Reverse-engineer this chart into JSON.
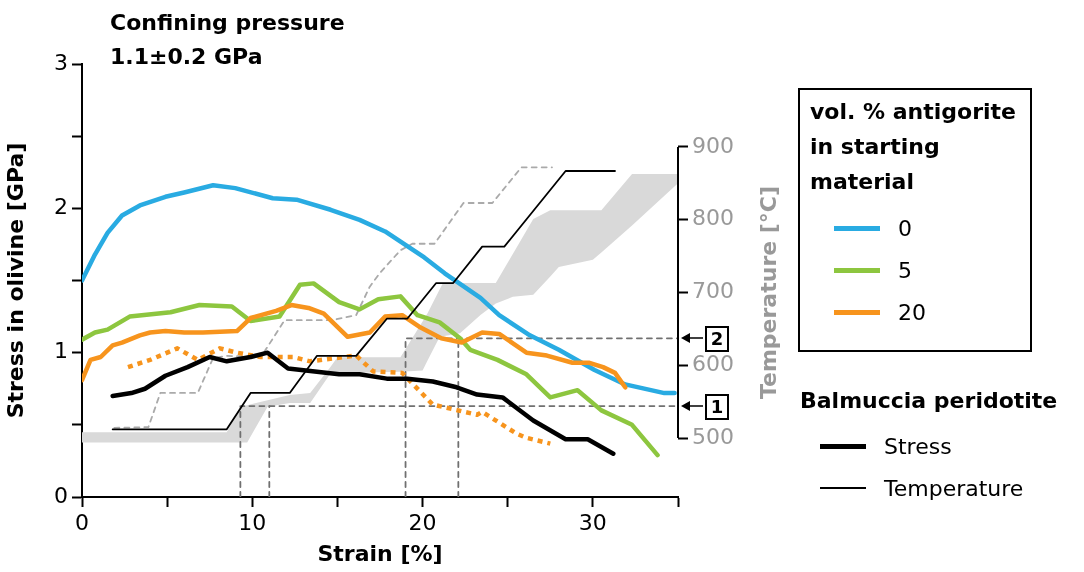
{
  "chart_data": {
    "type": "line",
    "title": "Confining pressure",
    "subtitle": "1.1±0.2 GPa",
    "xlabel": "Strain [%]",
    "ylabel": "Stress in olivine [GPa]",
    "y2label": "Temperature [°C]",
    "legend_title": "vol. % antigorite in starting material",
    "annotations": [
      "Balmuccia peridotite",
      {
        "text": "1",
        "x": 35,
        "y": 0.63
      },
      {
        "text": "2",
        "x": 35,
        "y": 1.1
      }
    ],
    "xlim": [
      0,
      35
    ],
    "xticks": [
      0,
      {
        "value": 5,
        "label": null
      },
      10,
      {
        "value": 15,
        "label": null
      },
      20,
      {
        "value": 25,
        "label": null
      },
      30,
      {
        "value": 35,
        "label": null
      }
    ],
    "ylim": [
      0,
      3
    ],
    "yticks": [
      0,
      {
        "value": 0.5,
        "label": null
      },
      1,
      {
        "value": 1.5,
        "label": null
      },
      2,
      {
        "value": 2.5,
        "label": null
      },
      3
    ],
    "y2lim": [
      419,
      1014
    ],
    "y2ticks": [
      500,
      600,
      700,
      800,
      900
    ],
    "grid": false,
    "legend": "right",
    "marker": "none",
    "series": [
      {
        "type": "area",
        "axis": "y2",
        "color": "#d9d9d9",
        "x": [
          0,
          8.5,
          9.3,
          9.7,
          10.9,
          12.2,
          13.4,
          14.6,
          15,
          18.7,
          20,
          20.3,
          21,
          21.2,
          22.2,
          23.4,
          24.3,
          25.3,
          26.5,
          27.5,
          28,
          30,
          30.5,
          32.3,
          35
        ],
        "values": [
          null,
          null,
          null,
          null,
          null,
          null,
          null,
          null,
          null,
          null,
          null,
          null,
          null,
          null,
          null,
          null,
          null,
          null,
          null,
          null,
          null,
          null,
          null,
          null,
          null
        ],
        "lower": [
          494,
          494,
          494,
          494,
          543,
          548,
          548,
          589,
          589,
          591,
          593,
          607,
          639,
          640,
          644,
          669,
          685,
          694,
          697,
          722,
          735,
          745,
          755,
          792,
          850
        ],
        "upper": [
          508,
          508,
          543,
          545,
          552,
          559,
          562,
          598,
          611,
          611,
          660,
          672,
          704,
          713,
          713,
          713,
          713,
          753,
          801,
          813,
          813,
          813,
          813,
          863,
          863
        ]
      },
      {
        "axis": "y2",
        "color": "#707070",
        "line_style": "dashed",
        "x": [
          9.3,
          9.3,
          35
        ],
        "values": [
          419,
          544,
          544
        ]
      },
      {
        "axis": "y2",
        "color": "#707070",
        "line_style": "dashed",
        "x": [
          11,
          11
        ],
        "values": [
          419,
          544
        ]
      },
      {
        "axis": "y2",
        "color": "#707070",
        "line_style": "dashed",
        "x": [
          19,
          19,
          35
        ],
        "values": [
          419,
          637,
          637
        ]
      },
      {
        "axis": "y2",
        "color": "#707070",
        "line_style": "dashed",
        "x": [
          22.1,
          22.1
        ],
        "values": [
          419,
          637
        ]
      },
      {
        "axis": "y2",
        "color": "#aaaaaa",
        "line_style": "dashed",
        "x": [
          1.9,
          3.9,
          4.6,
          6.8,
          7.7,
          8.5,
          10.5,
          11.9,
          14.7,
          16.1,
          16.9,
          17.5,
          18.7,
          19.4,
          20.7,
          22.4,
          24.1,
          25.8,
          27.6
        ],
        "values": [
          514,
          515,
          562,
          562,
          610,
          613,
          611,
          662,
          662,
          669,
          708,
          727,
          758,
          767,
          767,
          823,
          823,
          872,
          872
        ]
      },
      {
        "color": "#f7941d",
        "line_style": "dotted",
        "x": [
          2.7,
          4,
          5.6,
          6.8,
          8.1,
          9.1,
          10.5,
          12.4,
          13.4,
          16.1,
          17.1,
          18.8,
          20.6,
          23.2,
          23.5,
          25.5,
          26.1,
          27.5
        ],
        "values": [
          0.9,
          0.95,
          1.03,
          0.95,
          1.03,
          1.0,
          0.97,
          0.97,
          0.94,
          0.98,
          0.87,
          0.86,
          0.64,
          0.57,
          0.59,
          0.44,
          0.41,
          0.37
        ]
      },
      {
        "name": "0",
        "color": "#29abe2",
        "x": [
          0,
          0.76,
          1.5,
          2.35,
          3.4,
          4.9,
          6,
          7.7,
          9,
          11.2,
          12.6,
          14.6,
          16.3,
          17.8,
          20.1,
          21.3,
          23.4,
          24.5,
          26.3,
          28,
          30.1,
          31.9,
          34.2,
          34.8
        ],
        "values": [
          1.5,
          1.68,
          1.83,
          1.95,
          2.02,
          2.08,
          2.11,
          2.16,
          2.14,
          2.07,
          2.06,
          1.99,
          1.92,
          1.84,
          1.66,
          1.55,
          1.38,
          1.26,
          1.12,
          1.02,
          0.88,
          0.78,
          0.72,
          0.72
        ]
      },
      {
        "name": "5",
        "color": "#8dc63f",
        "x": [
          0,
          0.76,
          1.5,
          2.8,
          5.2,
          6.9,
          8.8,
          9.9,
          11.6,
          12.8,
          13.6,
          15.1,
          16.3,
          17.4,
          18.7,
          19.7,
          21,
          22.2,
          22.8,
          24.4,
          26.1,
          27.5,
          29.1,
          30.5,
          32.3,
          33.8
        ],
        "values": [
          1.09,
          1.14,
          1.16,
          1.25,
          1.28,
          1.33,
          1.32,
          1.22,
          1.25,
          1.47,
          1.48,
          1.35,
          1.3,
          1.37,
          1.39,
          1.26,
          1.21,
          1.1,
          1.02,
          0.95,
          0.85,
          0.69,
          0.74,
          0.6,
          0.5,
          0.29
        ]
      },
      {
        "name": "20",
        "color": "#f7941d",
        "x": [
          0,
          0.5,
          1.1,
          1.8,
          2.35,
          3.4,
          4,
          4.9,
          6,
          7.1,
          9.1,
          9.9,
          11.4,
          12.3,
          13.3,
          14.2,
          15.6,
          16.9,
          17.8,
          18.8,
          19.8,
          21.1,
          22.3,
          23.5,
          24.5,
          26.1,
          27.3,
          28.8,
          29.8,
          30.6,
          31.3,
          31.9
        ],
        "values": [
          0.81,
          0.95,
          0.97,
          1.05,
          1.07,
          1.12,
          1.14,
          1.15,
          1.14,
          1.14,
          1.15,
          1.24,
          1.29,
          1.33,
          1.31,
          1.27,
          1.11,
          1.14,
          1.25,
          1.26,
          1.18,
          1.1,
          1.07,
          1.14,
          1.13,
          1.0,
          0.98,
          0.93,
          0.93,
          0.9,
          0.86,
          0.76
        ]
      },
      {
        "name": "Stress",
        "color": "#000000",
        "x": [
          1.8,
          2.9,
          3.7,
          4.9,
          6.2,
          7.5,
          8.5,
          9.9,
          10.9,
          12.1,
          15.1,
          16.3,
          17.9,
          19.1,
          20.6,
          22,
          23.2,
          24.7,
          26.5,
          28.4,
          29.7,
          31.2
        ],
        "values": [
          0.7,
          0.72,
          0.75,
          0.84,
          0.9,
          0.97,
          0.94,
          0.97,
          1.0,
          0.89,
          0.85,
          0.85,
          0.82,
          0.82,
          0.8,
          0.76,
          0.71,
          0.69,
          0.53,
          0.4,
          0.4,
          0.3
        ]
      },
      {
        "name": "Temperature",
        "axis": "y2",
        "color": "#000000",
        "x": [
          1.8,
          8.5,
          9.9,
          12.2,
          13.8,
          16.1,
          17.9,
          19.1,
          20.8,
          21.8,
          23.5,
          24.8,
          28.4,
          31.3
        ],
        "values": [
          512,
          512,
          562,
          562,
          613,
          613,
          664,
          664,
          713,
          713,
          763,
          763,
          867,
          867
        ]
      }
    ]
  }
}
